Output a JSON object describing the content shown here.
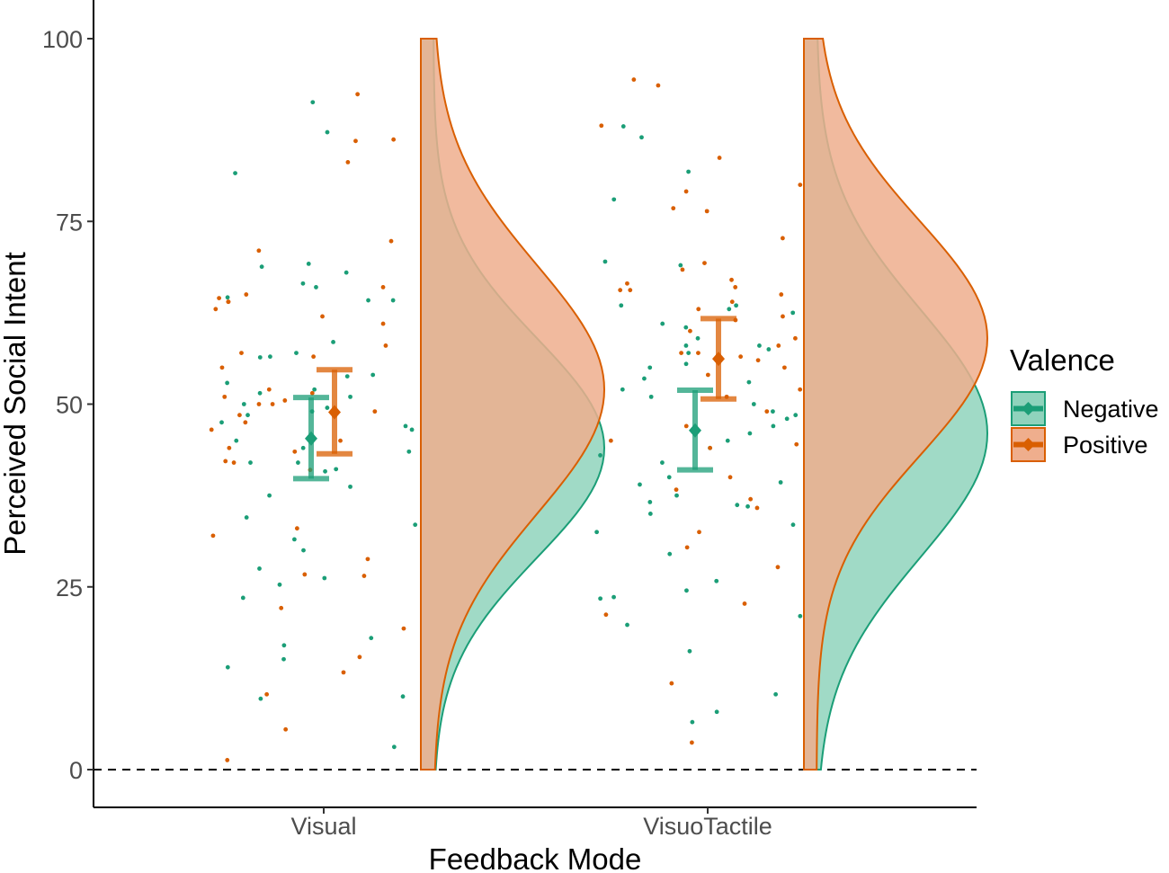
{
  "chart_data": {
    "type": "raincloud",
    "xlabel": "Feedback Mode",
    "ylabel": "Perceived Social Intent",
    "categories": [
      "Visual",
      "VisuoTactile"
    ],
    "ylim": [
      -10,
      105
    ],
    "yticks": [
      0,
      25,
      50,
      75,
      100
    ],
    "reference_line": {
      "y": 0,
      "style": "dashed"
    },
    "legend": {
      "title": "Valence",
      "position": "right"
    },
    "series": [
      {
        "name": "Negative",
        "color": "#1b9e77",
        "fill": "#8fd3bc",
        "summary": [
          {
            "category": "Visual",
            "mean": 45.3,
            "lower": 39.8,
            "upper": 50.9
          },
          {
            "category": "VisuoTactile",
            "mean": 46.4,
            "lower": 41.0,
            "upper": 51.9
          }
        ],
        "density": [
          {
            "category": "Visual",
            "peak_y": 44,
            "sd": 15
          },
          {
            "category": "VisuoTactile",
            "peak_y": 46,
            "sd": 17
          }
        ],
        "points": [
          {
            "category": "Visual",
            "y": [
              91.3,
              87.2,
              81.6,
              68.8,
              66.5,
              66.0,
              64.6,
              64.2,
              58.5,
              57.0,
              56.5,
              54.0,
              53.8,
              52.9,
              52.0,
              51.5,
              51.0,
              50.0,
              49.5,
              49.0,
              48.5,
              47.5,
              47.0,
              46.5,
              45.0,
              44.0,
              43.5,
              42.0,
              42.0,
              40.8,
              38.7,
              37.5,
              34.5,
              33.5,
              30.0,
              27.5,
              26.2,
              25.3,
              23.5,
              18.0,
              17.0,
              15.1,
              14.0,
              10.0,
              9.7,
              3.1,
              69.2,
              56.4,
              41.1,
              31.5,
              64.2,
              68.0
            ]
          },
          {
            "category": "VisuoTactile",
            "y": [
              88.0,
              86.5,
              81.8,
              78.0,
              69.5,
              69.0,
              63.5,
              63.0,
              62.5,
              61.0,
              60.5,
              59.0,
              58.0,
              57.5,
              57.0,
              55.5,
              55.0,
              53.5,
              53.0,
              52.0,
              51.0,
              50.0,
              49.0,
              48.5,
              48.0,
              47.0,
              46.0,
              45.0,
              44.0,
              43.0,
              42.0,
              40.0,
              39.0,
              37.5,
              36.2,
              36.0,
              35.0,
              33.5,
              32.5,
              29.5,
              25.8,
              24.5,
              23.6,
              21.0,
              16.2,
              10.3,
              7.9,
              6.5,
              63.5,
              58.0,
              39.3,
              36.6,
              23.4,
              19.8
            ]
          }
        ]
      },
      {
        "name": "Positive",
        "color": "#d95f02",
        "fill": "#efae8d",
        "summary": [
          {
            "category": "Visual",
            "mean": 48.9,
            "lower": 43.2,
            "upper": 54.7
          },
          {
            "category": "VisuoTactile",
            "mean": 56.2,
            "lower": 50.7,
            "upper": 61.7
          }
        ],
        "density": [
          {
            "category": "Visual",
            "peak_y": 52,
            "sd": 17
          },
          {
            "category": "VisuoTactile",
            "peak_y": 59,
            "sd": 16
          }
        ],
        "points": [
          {
            "category": "Visual",
            "y": [
              92.4,
              86.0,
              83.1,
              72.3,
              71.0,
              66.0,
              65.0,
              64.5,
              64.0,
              63.0,
              62.0,
              61.0,
              58.0,
              57.0,
              56.5,
              55.0,
              52.0,
              51.5,
              51.0,
              50.5,
              50.0,
              50.0,
              49.0,
              48.5,
              47.5,
              46.5,
              45.0,
              44.0,
              43.5,
              42.0,
              41.0,
              33.0,
              32.0,
              28.8,
              26.7,
              26.5,
              22.1,
              19.3,
              15.4,
              13.3,
              10.3,
              5.5,
              1.3,
              86.2,
              64.0,
              42.2
            ]
          },
          {
            "category": "VisuoTactile",
            "y": [
              94.4,
              93.6,
              88.1,
              83.7,
              79.1,
              76.8,
              76.4,
              72.7,
              69.3,
              68.4,
              65.6,
              65.0,
              64.0,
              63.0,
              62.0,
              61.5,
              60.0,
              59.0,
              58.0,
              57.0,
              57.0,
              56.5,
              56.0,
              55.0,
              54.0,
              52.0,
              51.0,
              49.0,
              47.0,
              45.0,
              44.5,
              44.0,
              40.0,
              38.3,
              37.0,
              35.8,
              32.5,
              30.4,
              27.7,
              22.7,
              21.2,
              11.8,
              3.7,
              80.0,
              67.0,
              66.5,
              66.0,
              65.6
            ]
          }
        ]
      }
    ]
  }
}
